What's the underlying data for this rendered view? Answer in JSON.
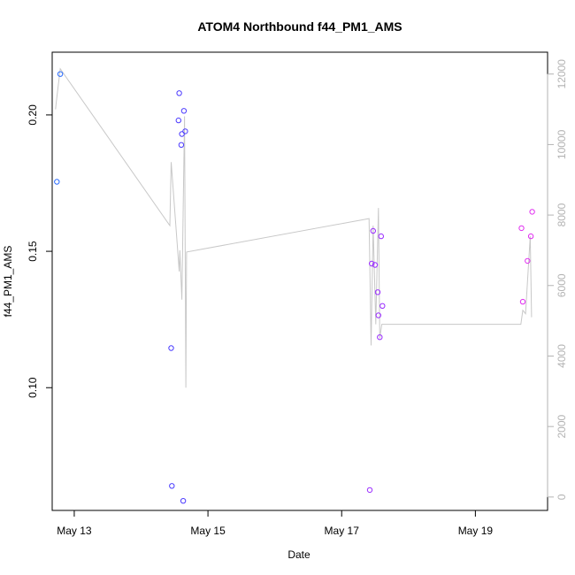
{
  "chart_data": {
    "type": "scatter",
    "title": "ATOM4 Northbound f44_PM1_AMS",
    "xlabel": "Date",
    "ylabel": "f44_PM1_AMS",
    "x_ticks": [
      {
        "value": 13.0,
        "label": "May 13"
      },
      {
        "value": 15.0,
        "label": "May 15"
      },
      {
        "value": 17.0,
        "label": "May 17"
      },
      {
        "value": 19.0,
        "label": "May 19"
      }
    ],
    "xlim": [
      12.67,
      20.08
    ],
    "y_left": {
      "ylim": [
        0.055,
        0.223
      ],
      "ticks": [
        {
          "value": 0.1,
          "label": "0.10"
        },
        {
          "value": 0.15,
          "label": "0.15"
        },
        {
          "value": 0.2,
          "label": "0.20"
        }
      ]
    },
    "y_right": {
      "ylim": [
        -380,
        12620
      ],
      "ticks": [
        {
          "value": 0,
          "label": "0"
        },
        {
          "value": 2000,
          "label": "2000"
        },
        {
          "value": 4000,
          "label": "4000"
        },
        {
          "value": 6000,
          "label": "6000"
        },
        {
          "value": 8000,
          "label": "8000"
        },
        {
          "value": 10000,
          "label": "10000"
        },
        {
          "value": 12000,
          "label": "12000"
        }
      ]
    },
    "grid": false,
    "series": [
      {
        "kind": "points",
        "axis": "left",
        "points": [
          {
            "x": 12.74,
            "y": 0.1755,
            "color": "#2a6cff"
          },
          {
            "x": 12.79,
            "y": 0.215,
            "color": "#2a6cff"
          },
          {
            "x": 14.45,
            "y": 0.1145,
            "color": "#4a3cff"
          },
          {
            "x": 14.46,
            "y": 0.064,
            "color": "#4a3cff"
          },
          {
            "x": 14.56,
            "y": 0.198,
            "color": "#4c3bff"
          },
          {
            "x": 14.57,
            "y": 0.208,
            "color": "#4c3bff"
          },
          {
            "x": 14.6,
            "y": 0.189,
            "color": "#4c3bff"
          },
          {
            "x": 14.61,
            "y": 0.193,
            "color": "#4c3bff"
          },
          {
            "x": 14.63,
            "y": 0.0585,
            "color": "#4c3bff"
          },
          {
            "x": 14.64,
            "y": 0.2015,
            "color": "#4c3bff"
          },
          {
            "x": 14.66,
            "y": 0.194,
            "color": "#4c3bff"
          },
          {
            "x": 17.42,
            "y": 0.0625,
            "color": "#9a2cff"
          },
          {
            "x": 17.45,
            "y": 0.1455,
            "color": "#9a2cff"
          },
          {
            "x": 17.47,
            "y": 0.1575,
            "color": "#9a2cff"
          },
          {
            "x": 17.5,
            "y": 0.145,
            "color": "#9a2cff"
          },
          {
            "x": 17.54,
            "y": 0.135,
            "color": "#9a2cff"
          },
          {
            "x": 17.55,
            "y": 0.1265,
            "color": "#9a2cff"
          },
          {
            "x": 17.57,
            "y": 0.1185,
            "color": "#9a2cff"
          },
          {
            "x": 17.59,
            "y": 0.1555,
            "color": "#9a2cff"
          },
          {
            "x": 17.61,
            "y": 0.13,
            "color": "#9a2cff"
          },
          {
            "x": 19.69,
            "y": 0.1585,
            "color": "#e02cf0"
          },
          {
            "x": 19.71,
            "y": 0.1315,
            "color": "#e02cf0"
          },
          {
            "x": 19.78,
            "y": 0.1465,
            "color": "#e02cf0"
          },
          {
            "x": 19.83,
            "y": 0.1555,
            "color": "#e02cf0"
          },
          {
            "x": 19.85,
            "y": 0.1645,
            "color": "#e02cf0"
          }
        ]
      },
      {
        "kind": "line",
        "axis": "right",
        "color": "#c8c8c8",
        "points": [
          [
            12.72,
            11000
          ],
          [
            12.73,
            11180
          ],
          [
            12.79,
            12150
          ],
          [
            14.43,
            7700
          ],
          [
            14.45,
            9500
          ],
          [
            14.57,
            6400
          ],
          [
            14.58,
            7000
          ],
          [
            14.61,
            5600
          ],
          [
            14.65,
            10800
          ],
          [
            14.67,
            3100
          ],
          [
            14.68,
            6950
          ],
          [
            17.41,
            7900
          ],
          [
            17.44,
            4300
          ],
          [
            17.47,
            7700
          ],
          [
            17.51,
            4900
          ],
          [
            17.55,
            8200
          ],
          [
            17.57,
            4500
          ],
          [
            17.6,
            4900
          ],
          [
            19.68,
            4900
          ],
          [
            19.71,
            5300
          ],
          [
            19.75,
            5200
          ],
          [
            19.82,
            7400
          ],
          [
            19.84,
            5100
          ]
        ]
      }
    ]
  }
}
